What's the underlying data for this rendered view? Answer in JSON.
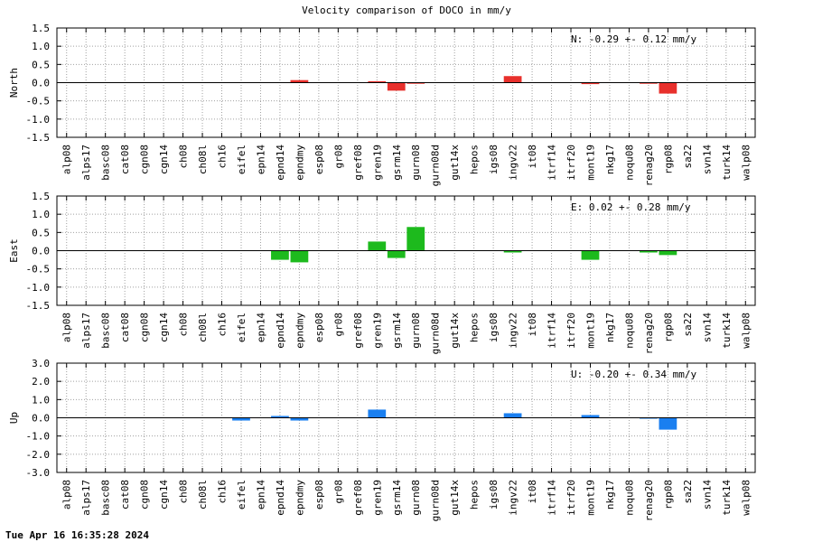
{
  "chart_data": {
    "type": "bar",
    "title": "Velocity comparison of DOCO in mm/y",
    "categories": [
      "alp08",
      "alps17",
      "basc08",
      "cat08",
      "cgn08",
      "cgn14",
      "ch08",
      "ch08l",
      "ch16",
      "eifel",
      "epn14",
      "epnd14",
      "epndmy",
      "esp08",
      "gr08",
      "gref08",
      "gren19",
      "gsrm14",
      "gurn08",
      "gurn08d",
      "gut14x",
      "hepos",
      "igs08",
      "ingv22",
      "it08",
      "itrf14",
      "itrf20",
      "mont19",
      "nkg17",
      "noqu08",
      "renag20",
      "rgp08",
      "sa22",
      "svn14",
      "turk14",
      "walp08"
    ],
    "panels": [
      {
        "ylabel": "North",
        "ylim": [
          -1.5,
          1.5
        ],
        "yticks": [
          "1.5",
          "1.0",
          "0.5",
          "0.0",
          "-0.5",
          "-1.0",
          "-1.5"
        ],
        "color": "#e8302c",
        "annotation": "N:  -0.29 +-  0.12 mm/y",
        "values": [
          null,
          null,
          null,
          null,
          null,
          null,
          null,
          null,
          null,
          null,
          null,
          null,
          0.07,
          null,
          null,
          null,
          0.04,
          -0.22,
          -0.03,
          null,
          null,
          null,
          null,
          0.18,
          null,
          null,
          null,
          -0.04,
          null,
          null,
          -0.03,
          -0.3,
          null,
          null,
          null,
          null
        ]
      },
      {
        "ylabel": "East",
        "ylim": [
          -1.5,
          1.5
        ],
        "yticks": [
          "1.5",
          "1.0",
          "0.5",
          "0.0",
          "-0.5",
          "-1.0",
          "-1.5"
        ],
        "color": "#1dba1d",
        "annotation": "E:   0.02 +-  0.28 mm/y",
        "values": [
          null,
          null,
          null,
          null,
          null,
          null,
          null,
          null,
          null,
          null,
          null,
          -0.25,
          -0.32,
          null,
          null,
          null,
          0.25,
          -0.2,
          0.65,
          null,
          null,
          null,
          null,
          -0.05,
          null,
          null,
          null,
          -0.25,
          null,
          null,
          -0.05,
          -0.12,
          null,
          null,
          null,
          null
        ]
      },
      {
        "ylabel": "Up",
        "ylim": [
          -3.0,
          3.0
        ],
        "yticks": [
          "3.0",
          "2.0",
          "1.0",
          "0.0",
          "-1.0",
          "-2.0",
          "-3.0"
        ],
        "color": "#1a7ff0",
        "annotation": "U:  -0.20 +-  0.34 mm/y",
        "values": [
          null,
          null,
          null,
          null,
          null,
          null,
          null,
          null,
          null,
          -0.15,
          null,
          0.1,
          -0.15,
          null,
          null,
          null,
          0.45,
          null,
          null,
          null,
          null,
          null,
          null,
          0.25,
          null,
          null,
          null,
          0.15,
          null,
          null,
          -0.05,
          -0.65,
          null,
          null,
          null,
          null
        ]
      }
    ],
    "grid": true
  },
  "footer": "Tue Apr 16 16:35:28 2024"
}
